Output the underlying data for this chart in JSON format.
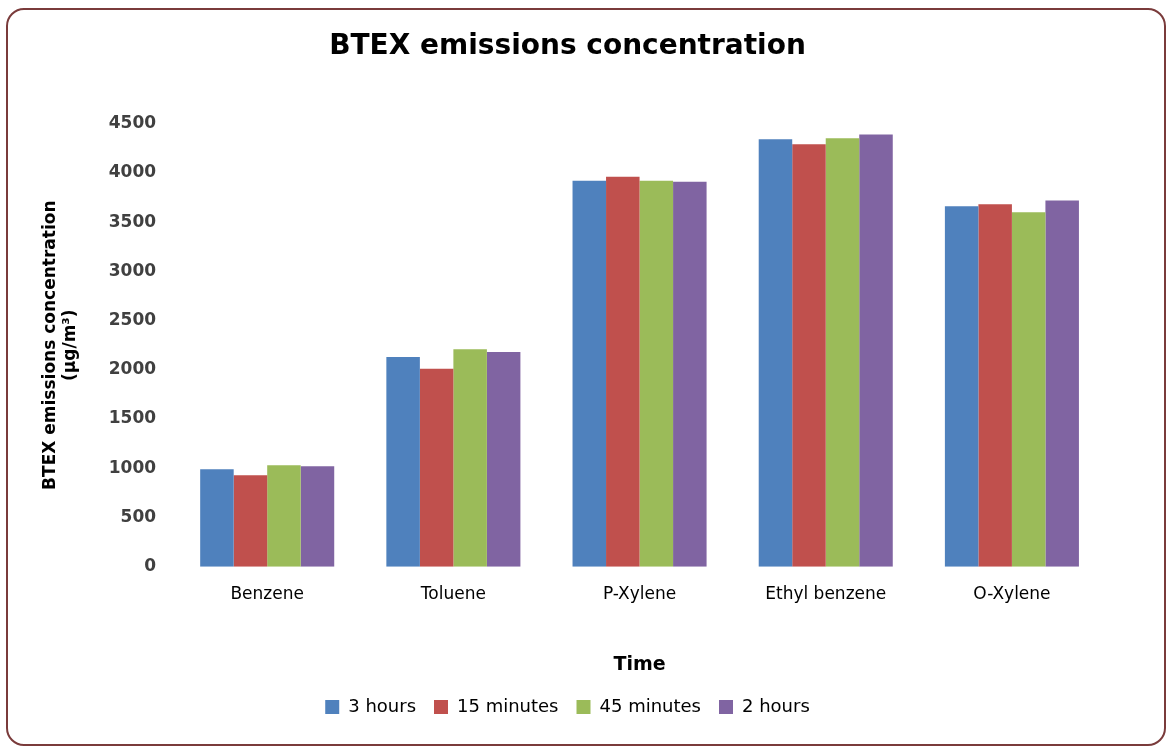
{
  "chart_data": {
    "type": "bar",
    "title": "BTEX emissions concentration",
    "xlabel": "Time",
    "ylabel": "BTEX emissions concentration\n(µg/m³)",
    "categories": [
      "Benzene",
      "Toluene",
      "P-Xylene",
      "Ethyl benzene",
      "O-Xylene"
    ],
    "series": [
      {
        "name": "3 hours",
        "color": "#4f81bd",
        "values": [
          990,
          2130,
          3920,
          4340,
          3660
        ]
      },
      {
        "name": "15 minutes",
        "color": "#c0504d",
        "values": [
          930,
          2010,
          3960,
          4290,
          3680
        ]
      },
      {
        "name": "45 minutes",
        "color": "#9bbb59",
        "values": [
          1030,
          2210,
          3920,
          4350,
          3600
        ]
      },
      {
        "name": "2 hours",
        "color": "#8064a2",
        "values": [
          1020,
          2180,
          3910,
          4390,
          3720
        ]
      }
    ],
    "ylim": [
      0,
      4500
    ],
    "yticks": [
      0,
      500,
      1000,
      1500,
      2000,
      2500,
      3000,
      3500,
      4000,
      4500
    ],
    "grid": false,
    "legend": "bottom"
  }
}
